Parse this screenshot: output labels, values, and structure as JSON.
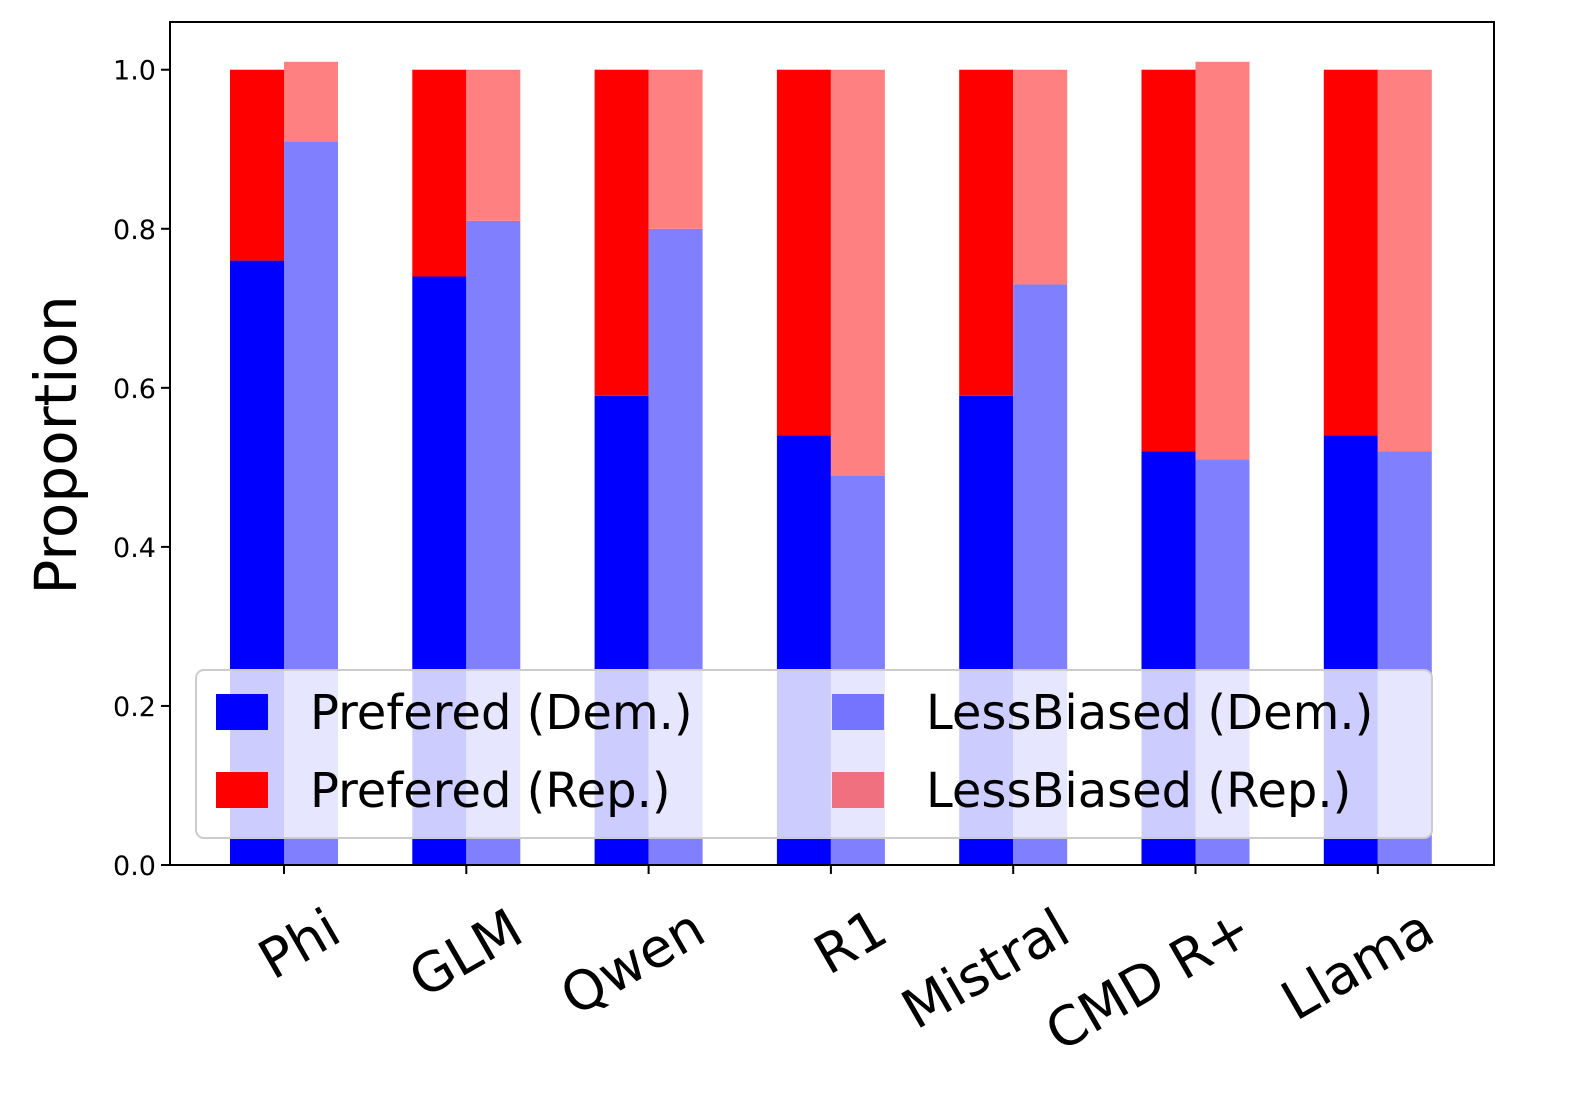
{
  "chart_data": {
    "type": "bar",
    "stacked": true,
    "grouped": true,
    "title": "",
    "xlabel": "",
    "ylabel": "Proportion",
    "ylim": [
      0,
      1.06
    ],
    "yticks": [
      "0.0",
      "0.2",
      "0.4",
      "0.6",
      "0.8",
      "1.0"
    ],
    "categories": [
      "Phi",
      "GLM",
      "Qwen",
      "R1",
      "Mistral",
      "CMD R+",
      "Llama"
    ],
    "groups": [
      {
        "name": "Prefered",
        "stack": [
          {
            "name": "Prefered (Dem.)",
            "color": "#0000ff",
            "values": [
              0.76,
              0.74,
              0.59,
              0.54,
              0.59,
              0.52,
              0.54
            ]
          },
          {
            "name": "Prefered (Rep.)",
            "color": "#ff0000",
            "values": [
              0.24,
              0.26,
              0.41,
              0.46,
              0.41,
              0.48,
              0.46
            ]
          }
        ]
      },
      {
        "name": "LessBiased",
        "stack": [
          {
            "name": "LessBiased (Dem.)",
            "color": "#8080ff",
            "values": [
              0.91,
              0.81,
              0.8,
              0.49,
              0.73,
              0.51,
              0.52
            ]
          },
          {
            "name": "LessBiased (Rep.)",
            "color": "#ff8080",
            "values": [
              0.1,
              0.19,
              0.2,
              0.51,
              0.27,
              0.5,
              0.48
            ]
          }
        ]
      }
    ],
    "legend": {
      "placement": "lower-center",
      "columns": 2,
      "entries": [
        {
          "label": "Prefered (Dem.)",
          "color": "#0000ff"
        },
        {
          "label": "LessBiased (Dem.)",
          "color": "#7474ff"
        },
        {
          "label": "Prefered (Rep.)",
          "color": "#ff0000"
        },
        {
          "label": "LessBiased (Rep.)",
          "color": "#f07080"
        }
      ]
    }
  }
}
